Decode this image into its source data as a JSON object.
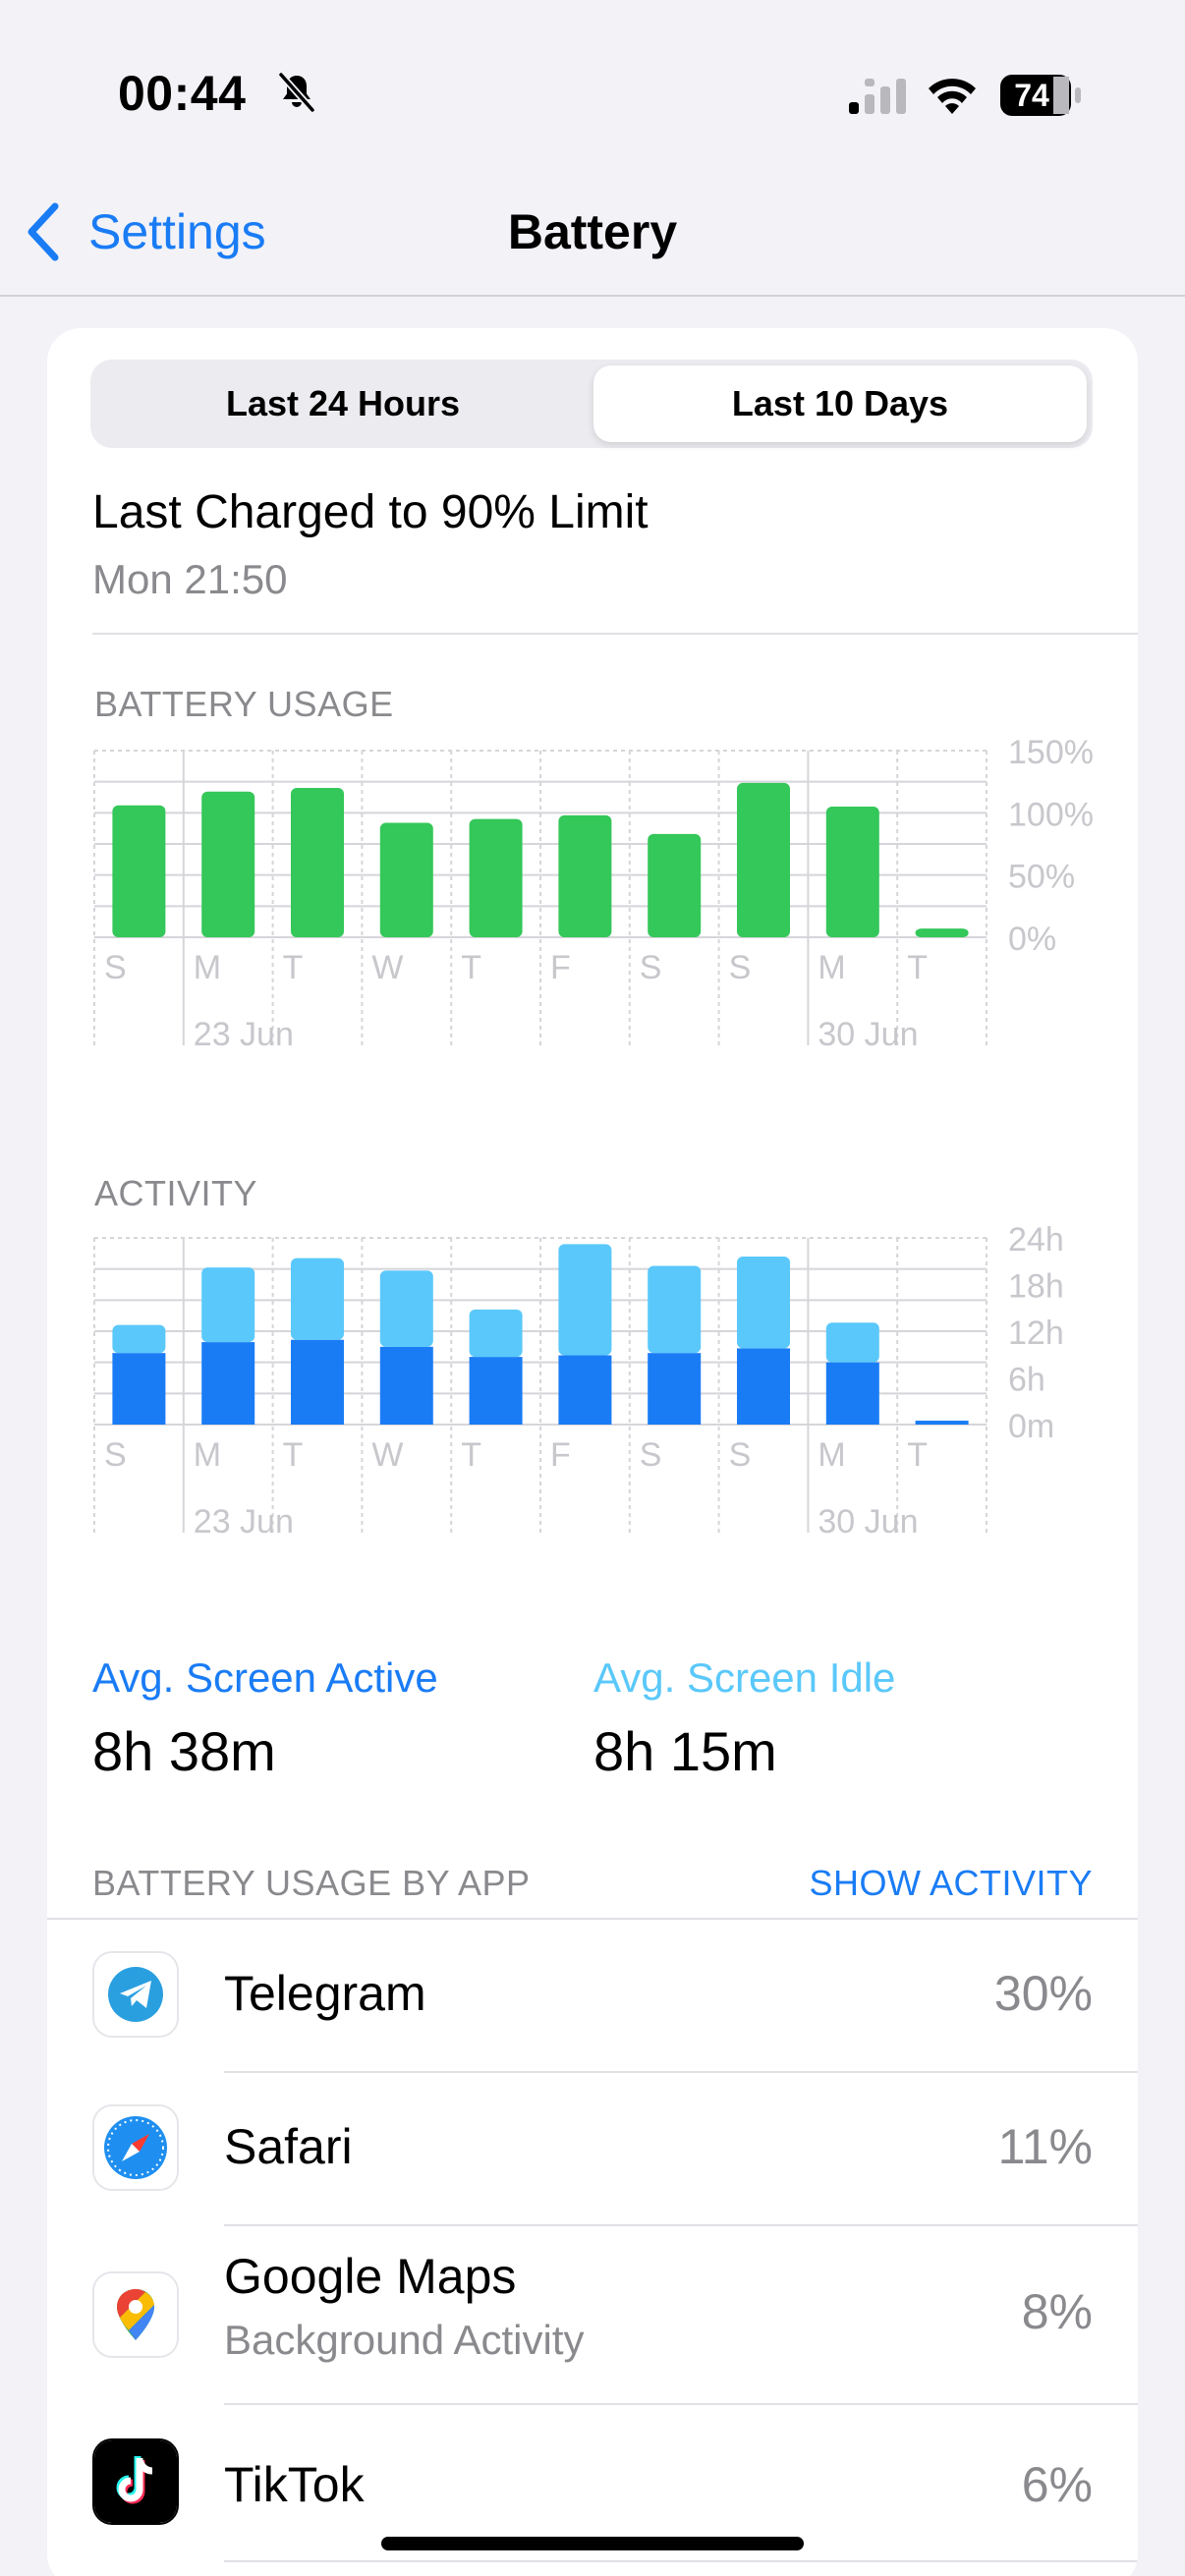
{
  "status_bar": {
    "time": "00:44",
    "battery_level": "74",
    "icons": [
      "bell-slash-icon",
      "cellular-signal-icon",
      "wifi-icon",
      "battery-icon"
    ]
  },
  "nav": {
    "back_label": "Settings",
    "title": "Battery"
  },
  "segmented": {
    "options": [
      "Last 24 Hours",
      "Last 10 Days"
    ],
    "selected": "Last 10 Days"
  },
  "last_charged": {
    "title": "Last Charged to 90% Limit",
    "time": "Mon 21:50"
  },
  "chart_data": [
    {
      "type": "bar",
      "title": "BATTERY USAGE",
      "categories": [
        "S",
        "M",
        "T",
        "W",
        "T",
        "F",
        "S",
        "S",
        "M",
        "T"
      ],
      "week_labels": [
        "23 Jun",
        "30 Jun"
      ],
      "values": [
        106,
        117,
        120,
        92,
        95,
        98,
        83,
        124,
        105,
        7
      ],
      "ylim": [
        0,
        150
      ],
      "yticks": [
        "150%",
        "100%",
        "50%",
        "0%"
      ],
      "ytick_values": [
        150,
        100,
        50,
        0
      ],
      "color": "#34c759",
      "grid": true
    },
    {
      "type": "bar",
      "stacked": true,
      "title": "ACTIVITY",
      "categories": [
        "S",
        "M",
        "T",
        "W",
        "T",
        "F",
        "S",
        "S",
        "M",
        "T"
      ],
      "week_labels": [
        "23 Jun",
        "30 Jun"
      ],
      "series": [
        {
          "name": "Avg. Screen Active",
          "values": [
            9.2,
            10.6,
            10.9,
            10.0,
            8.7,
            8.9,
            9.2,
            9.8,
            8.0,
            0.5
          ],
          "color": "#1a7cf5"
        },
        {
          "name": "Avg. Screen Idle",
          "values": [
            3.6,
            9.6,
            10.5,
            9.8,
            6.1,
            14.3,
            11.2,
            11.8,
            5.1,
            0
          ],
          "color": "#5ac8fa"
        }
      ],
      "ylim": [
        0,
        24
      ],
      "yticks": [
        "24h",
        "18h",
        "12h",
        "6h",
        "0m"
      ],
      "ytick_values": [
        24,
        18,
        12,
        6,
        0
      ],
      "grid": true
    }
  ],
  "averages": {
    "active_label": "Avg. Screen Active",
    "active_value": "8h 38m",
    "idle_label": "Avg. Screen Idle",
    "idle_value": "8h 15m"
  },
  "by_app": {
    "header": "BATTERY USAGE BY APP",
    "toggle": "SHOW ACTIVITY",
    "apps": [
      {
        "name": "Telegram",
        "percent": "30%",
        "icon": "telegram-icon"
      },
      {
        "name": "Safari",
        "percent": "11%",
        "icon": "safari-icon"
      },
      {
        "name": "Google Maps",
        "subtitle": "Background Activity",
        "percent": "8%",
        "icon": "google-maps-icon"
      },
      {
        "name": "TikTok",
        "percent": "6%",
        "icon": "tiktok-icon"
      }
    ]
  }
}
